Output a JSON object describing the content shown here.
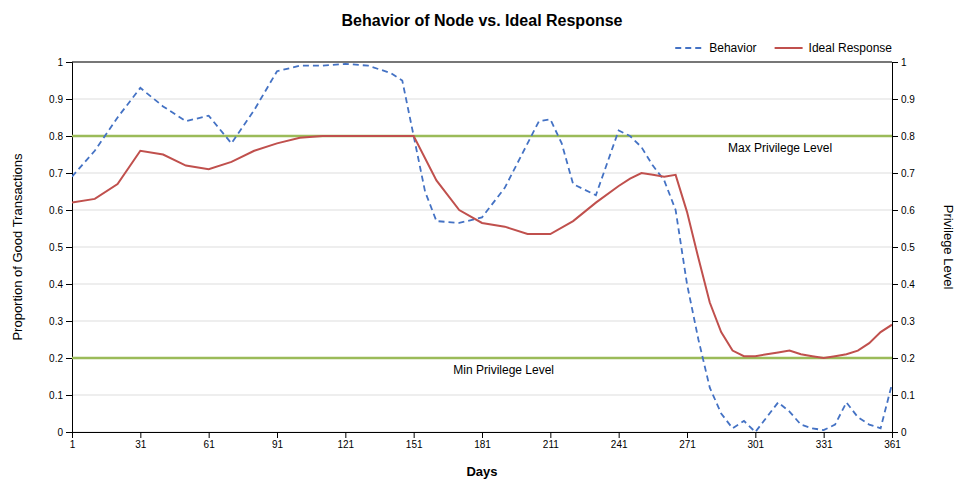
{
  "chart_data": {
    "type": "line",
    "title": "Behavior of Node vs. Ideal Response",
    "x_label": "Days",
    "y_label": "Proportion of Good Transactions",
    "y2_label": "Privilege Level",
    "xlim": [
      1,
      361
    ],
    "ylim": [
      0,
      1
    ],
    "y2lim": [
      0,
      1
    ],
    "xticks": [
      1,
      31,
      61,
      91,
      121,
      151,
      181,
      211,
      241,
      271,
      301,
      331,
      361
    ],
    "yticks": [
      0,
      0.1,
      0.2,
      0.3,
      0.4,
      0.5,
      0.6,
      0.7,
      0.8,
      0.9,
      1
    ],
    "y2ticks": [
      0,
      0.1,
      0.2,
      0.3,
      0.4,
      0.5,
      0.6,
      0.7,
      0.8,
      0.9,
      1
    ],
    "grid": "y",
    "legend": "upper right",
    "series": [
      {
        "name": "Behavior",
        "color": "#4472C4",
        "line_style": "dashed",
        "x": [
          1,
          11,
          21,
          31,
          41,
          51,
          61,
          71,
          81,
          91,
          101,
          111,
          121,
          131,
          141,
          146,
          151,
          156,
          161,
          171,
          181,
          191,
          201,
          206,
          211,
          216,
          221,
          231,
          241,
          246,
          251,
          256,
          261,
          266,
          271,
          276,
          281,
          286,
          291,
          296,
          301,
          306,
          311,
          316,
          321,
          326,
          331,
          336,
          341,
          346,
          351,
          356,
          361
        ],
        "values": [
          0.69,
          0.76,
          0.85,
          0.93,
          0.88,
          0.84,
          0.855,
          0.78,
          0.87,
          0.975,
          0.99,
          0.99,
          0.995,
          0.99,
          0.97,
          0.95,
          0.8,
          0.65,
          0.57,
          0.565,
          0.58,
          0.66,
          0.78,
          0.84,
          0.845,
          0.78,
          0.67,
          0.64,
          0.815,
          0.8,
          0.77,
          0.72,
          0.68,
          0.6,
          0.4,
          0.25,
          0.12,
          0.05,
          0.01,
          0.03,
          0.0,
          0.04,
          0.08,
          0.055,
          0.02,
          0.01,
          0.005,
          0.02,
          0.08,
          0.04,
          0.02,
          0.01,
          0.13
        ]
      },
      {
        "name": "Ideal Response",
        "color": "#C0504D",
        "line_style": "solid",
        "x": [
          1,
          11,
          21,
          31,
          41,
          51,
          61,
          71,
          81,
          91,
          101,
          111,
          121,
          131,
          141,
          151,
          161,
          171,
          181,
          191,
          201,
          211,
          221,
          231,
          241,
          246,
          251,
          256,
          261,
          266,
          271,
          276,
          281,
          286,
          291,
          296,
          301,
          306,
          311,
          316,
          321,
          326,
          331,
          336,
          341,
          346,
          351,
          356,
          361
        ],
        "values": [
          0.62,
          0.63,
          0.67,
          0.76,
          0.75,
          0.72,
          0.71,
          0.73,
          0.76,
          0.78,
          0.795,
          0.8,
          0.8,
          0.8,
          0.8,
          0.8,
          0.68,
          0.6,
          0.565,
          0.555,
          0.535,
          0.535,
          0.57,
          0.62,
          0.665,
          0.685,
          0.7,
          0.695,
          0.69,
          0.695,
          0.595,
          0.47,
          0.35,
          0.27,
          0.22,
          0.205,
          0.205,
          0.21,
          0.215,
          0.22,
          0.21,
          0.205,
          0.2,
          0.205,
          0.21,
          0.22,
          0.24,
          0.27,
          0.29
        ]
      }
    ],
    "reference_lines": [
      {
        "value": 0.8,
        "label": "Max Privilege Level",
        "color": "#9BBB59"
      },
      {
        "value": 0.2,
        "label": "Min Privilege Level",
        "color": "#9BBB59"
      }
    ]
  }
}
